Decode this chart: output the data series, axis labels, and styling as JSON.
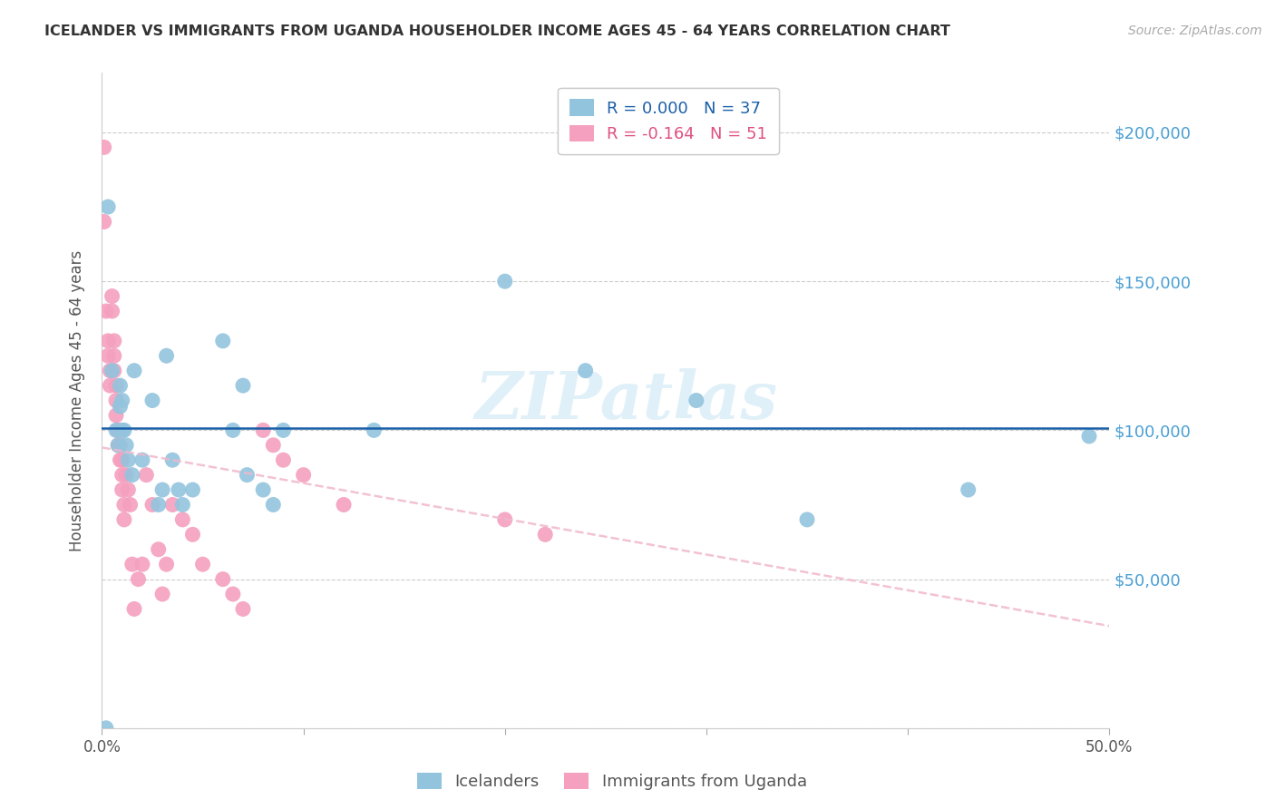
{
  "title": "ICELANDER VS IMMIGRANTS FROM UGANDA HOUSEHOLDER INCOME AGES 45 - 64 YEARS CORRELATION CHART",
  "source": "Source: ZipAtlas.com",
  "ylabel": "Householder Income Ages 45 - 64 years",
  "xlim": [
    0.0,
    0.5
  ],
  "ylim": [
    0,
    220000
  ],
  "yticks": [
    0,
    50000,
    100000,
    150000,
    200000
  ],
  "ytick_labels_right": [
    "",
    "$50,000",
    "$100,000",
    "$150,000",
    "$200,000"
  ],
  "xtick_positions": [
    0.0,
    0.1,
    0.2,
    0.3,
    0.4,
    0.5
  ],
  "xtick_labels": [
    "0.0%",
    "",
    "",
    "",
    "",
    "50.0%"
  ],
  "legend_label1": "Icelanders",
  "legend_label2": "Immigrants from Uganda",
  "R1": "0.000",
  "N1": "37",
  "R2": "-0.164",
  "N2": "51",
  "color_blue": "#93c4de",
  "color_pink": "#f4a0be",
  "color_blue_line": "#1a5fa8",
  "color_pink_line": "#e05080",
  "color_pink_dash": "#f0b8cc",
  "watermark": "ZIPatlas",
  "blue_x": [
    0.002,
    0.003,
    0.005,
    0.007,
    0.008,
    0.009,
    0.009,
    0.01,
    0.01,
    0.011,
    0.012,
    0.013,
    0.015,
    0.016,
    0.02,
    0.025,
    0.028,
    0.03,
    0.032,
    0.035,
    0.038,
    0.04,
    0.045,
    0.06,
    0.065,
    0.07,
    0.072,
    0.08,
    0.085,
    0.09,
    0.135,
    0.2,
    0.24,
    0.295,
    0.35,
    0.43,
    0.49
  ],
  "blue_y": [
    0,
    175000,
    120000,
    100000,
    95000,
    108000,
    115000,
    100000,
    110000,
    100000,
    95000,
    90000,
    85000,
    120000,
    90000,
    110000,
    75000,
    80000,
    125000,
    90000,
    80000,
    75000,
    80000,
    130000,
    100000,
    115000,
    85000,
    80000,
    75000,
    100000,
    100000,
    150000,
    120000,
    110000,
    70000,
    80000,
    98000
  ],
  "pink_x": [
    0.001,
    0.001,
    0.002,
    0.003,
    0.003,
    0.004,
    0.004,
    0.005,
    0.005,
    0.006,
    0.006,
    0.006,
    0.007,
    0.007,
    0.007,
    0.008,
    0.008,
    0.008,
    0.009,
    0.009,
    0.01,
    0.01,
    0.01,
    0.011,
    0.011,
    0.012,
    0.013,
    0.014,
    0.015,
    0.016,
    0.018,
    0.02,
    0.022,
    0.025,
    0.028,
    0.03,
    0.032,
    0.035,
    0.04,
    0.045,
    0.05,
    0.06,
    0.065,
    0.07,
    0.08,
    0.085,
    0.09,
    0.1,
    0.12,
    0.2,
    0.22
  ],
  "pink_y": [
    195000,
    170000,
    140000,
    130000,
    125000,
    120000,
    115000,
    145000,
    140000,
    130000,
    125000,
    120000,
    115000,
    110000,
    105000,
    100000,
    100000,
    95000,
    95000,
    90000,
    90000,
    85000,
    80000,
    75000,
    70000,
    85000,
    80000,
    75000,
    55000,
    40000,
    50000,
    55000,
    85000,
    75000,
    60000,
    45000,
    55000,
    75000,
    70000,
    65000,
    55000,
    50000,
    45000,
    40000,
    100000,
    95000,
    90000,
    85000,
    75000,
    70000,
    65000
  ]
}
